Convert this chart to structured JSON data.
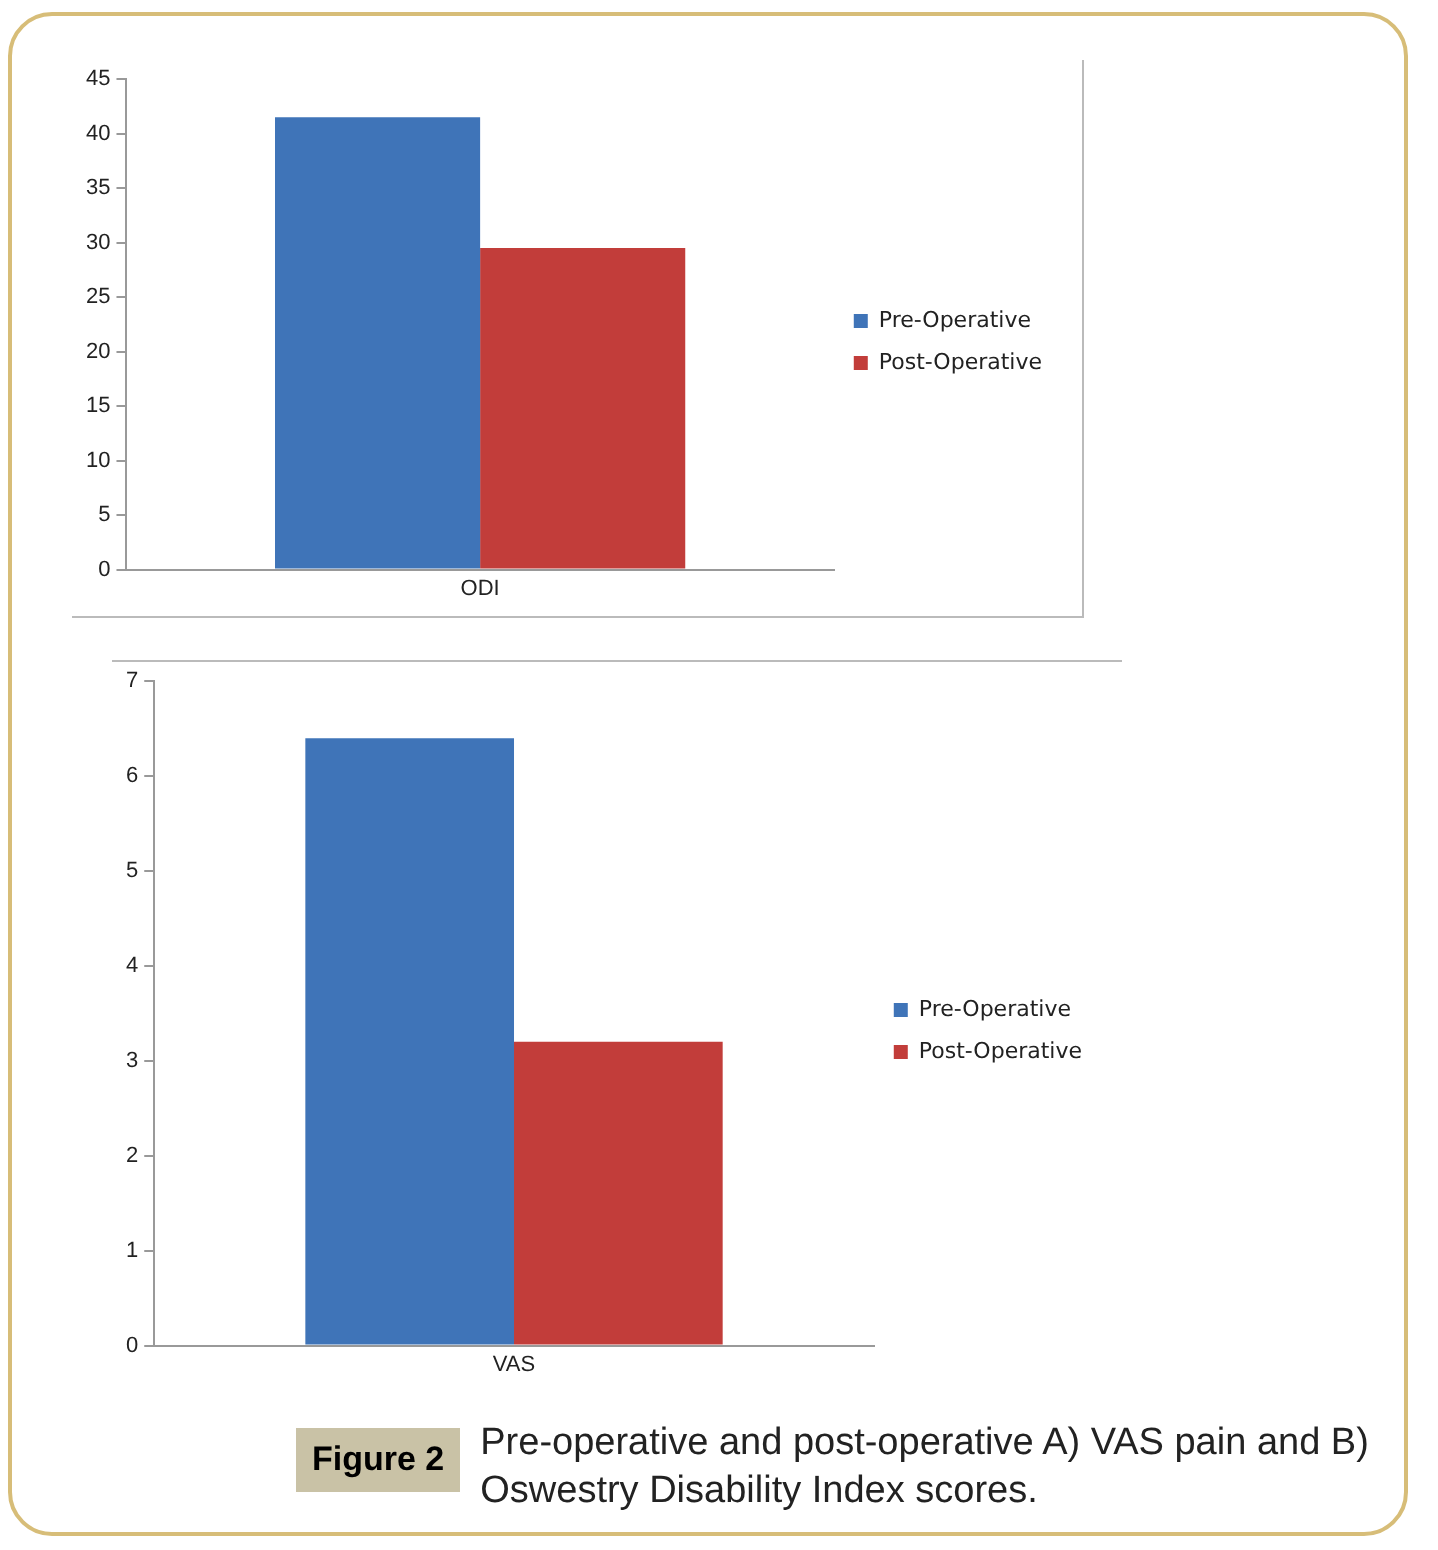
{
  "chart_data": [
    {
      "type": "bar",
      "categories": [
        "ODI"
      ],
      "series": [
        {
          "name": "Pre-Operative",
          "color": "#3f74b8",
          "values": [
            41.5
          ]
        },
        {
          "name": "Post-Operative",
          "color": "#c23d3a",
          "values": [
            29.5
          ]
        }
      ],
      "ylim": [
        0,
        45
      ],
      "yticks": [
        0,
        5,
        10,
        15,
        20,
        25,
        30,
        35,
        40,
        45
      ],
      "legend": "right"
    },
    {
      "type": "bar",
      "categories": [
        "VAS"
      ],
      "series": [
        {
          "name": "Pre-Operative",
          "color": "#3f74b8",
          "values": [
            6.4
          ]
        },
        {
          "name": "Post-Operative",
          "color": "#c23d3a",
          "values": [
            3.2
          ]
        }
      ],
      "ylim": [
        0,
        7
      ],
      "yticks": [
        0,
        1,
        2,
        3,
        4,
        5,
        6,
        7
      ],
      "legend": "right",
      "annotations": [
        "Figure 2",
        "Pre-operative and post-operative A) VAS pain and B) Oswestry Disability Index scores."
      ]
    }
  ]
}
